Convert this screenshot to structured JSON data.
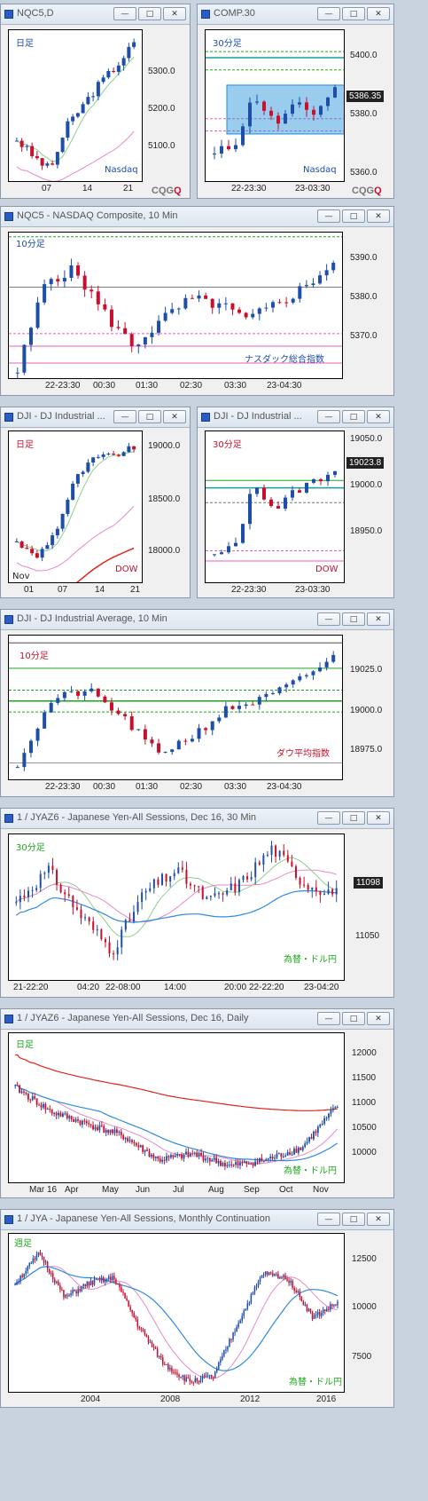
{
  "colors": {
    "up": "#1d4ea8",
    "down": "#c8102e",
    "ma_green": "#8fcf8f",
    "ma_pink": "#e88ac9",
    "ma_red": "#e0241c",
    "ma_blue": "#2e8be0",
    "grid_green": "#1aa81a",
    "grid_pink": "#e65fc2",
    "band": "#1e90d8"
  },
  "windows": [
    {
      "id": "w1",
      "title": "NQC5,D",
      "btn": [
        "—",
        "□",
        "✕"
      ],
      "period": "日足",
      "label": "Nasdaq",
      "yticks": [
        "5300.0",
        "5200.0",
        "5100.0"
      ],
      "xticks": [
        "07",
        "14",
        "21"
      ],
      "cqg": [
        "CQG",
        "Q"
      ]
    },
    {
      "id": "w2",
      "title": "COMP.30",
      "btn": [
        "—",
        "□",
        "✕"
      ],
      "period": "30分足",
      "label": "Nasdaq",
      "yticks": [
        "5400.0",
        "5380.0",
        "5360.0"
      ],
      "last": "5386.35",
      "xticks": [
        "22-23:30",
        "23-03:30"
      ],
      "cqg": [
        "CQG",
        "Q"
      ]
    },
    {
      "id": "w3",
      "title": "NQC5 - NASDAQ Composite, 10 Min",
      "btn": [
        "—",
        "□",
        "✕"
      ],
      "period": "10分足",
      "label": "ナスダック総合指数",
      "yticks": [
        "5390.0",
        "5380.0",
        "5370.0"
      ],
      "xticks": [
        "22-23:30",
        "00:30",
        "01:30",
        "02:30",
        "03:30",
        "23-04:30"
      ]
    },
    {
      "id": "w4",
      "title": "DJI - DJ Industrial ...",
      "btn": [
        "—",
        "□",
        "✕"
      ],
      "period": "日足",
      "label": "DOW",
      "yticks": [
        "19000.0",
        "18500.0",
        "18000.0"
      ],
      "xticks": [
        "01",
        "07",
        "14",
        "21"
      ],
      "xsub": "Nov"
    },
    {
      "id": "w5",
      "title": "DJI - DJ Industrial ...",
      "btn": [
        "—",
        "□",
        "✕"
      ],
      "period": "30分足",
      "label": "DOW",
      "yticks": [
        "19050.0",
        "19000.0",
        "18950.0"
      ],
      "last": "19023.8",
      "xticks": [
        "22-23:30",
        "23-03:30"
      ]
    },
    {
      "id": "w6",
      "title": "DJI - DJ Industrial Average, 10 Min",
      "btn": [
        "—",
        "□",
        "✕"
      ],
      "period": "10分足",
      "label": "ダウ平均指数",
      "yticks": [
        "19025.0",
        "19000.0",
        "18975.0"
      ],
      "xticks": [
        "22-23:30",
        "00:30",
        "01:30",
        "02:30",
        "03:30",
        "23-04:30"
      ]
    },
    {
      "id": "w7",
      "title": "1 / JYAZ6 - Japanese Yen-All Sessions, Dec 16, 30 Min",
      "btn": [
        "—",
        "□",
        "✕"
      ],
      "period": "30分足",
      "label": "為替・ドル円",
      "yticks": [
        "11050"
      ],
      "last": "11098",
      "xticks": [
        "21-22:20",
        "04:20",
        "22-08:00",
        "14:00",
        "20:00",
        "22-22:20",
        "23-04:20"
      ]
    },
    {
      "id": "w8",
      "title": "1 / JYAZ6 - Japanese Yen-All Sessions, Dec 16, Daily",
      "btn": [
        "—",
        "□",
        "✕"
      ],
      "period": "日足",
      "label": "為替・ドル円",
      "yticks": [
        "12000",
        "11500",
        "11000",
        "10500",
        "10000"
      ],
      "xticks": [
        "Mar 16",
        "Apr",
        "May",
        "Jun",
        "Jul",
        "Aug",
        "Sep",
        "Oct",
        "Nov"
      ]
    },
    {
      "id": "w9",
      "title": "1 / JYA - Japanese Yen-All Sessions, Monthly Continuation",
      "btn": [
        "—",
        "□",
        "✕"
      ],
      "period": "週足",
      "label": "為替・ドル円",
      "yticks": [
        "12500",
        "10000",
        "7500"
      ],
      "xticks": [
        "2004",
        "2008",
        "2012",
        "2016"
      ]
    }
  ],
  "chart_data": [
    {
      "type": "candlestick",
      "name": "NQC5 daily",
      "ylim": [
        5050,
        5400
      ],
      "ma": [
        "green",
        "pink"
      ]
    },
    {
      "type": "candlestick",
      "name": "COMP 30min",
      "ylim": [
        5355,
        5405
      ],
      "last": 5386.35
    },
    {
      "type": "candlestick",
      "name": "NQC5 10min",
      "ylim": [
        5362,
        5397
      ]
    },
    {
      "type": "candlestick",
      "name": "DJI daily",
      "ylim": [
        17700,
        19150
      ]
    },
    {
      "type": "candlestick",
      "name": "DJI 30min",
      "ylim": [
        18900,
        19065
      ],
      "last": 19023.8
    },
    {
      "type": "candlestick",
      "name": "DJI 10min",
      "ylim": [
        18960,
        19040
      ]
    },
    {
      "type": "candlestick",
      "name": "JYAZ6 30min",
      "ylim": [
        10900,
        11230
      ],
      "last": 11098
    },
    {
      "type": "candlestick",
      "name": "JYAZ6 daily",
      "ylim": [
        9800,
        12300
      ]
    },
    {
      "type": "candlestick",
      "name": "JYA monthly",
      "ylim": [
        7300,
        13800
      ]
    }
  ]
}
